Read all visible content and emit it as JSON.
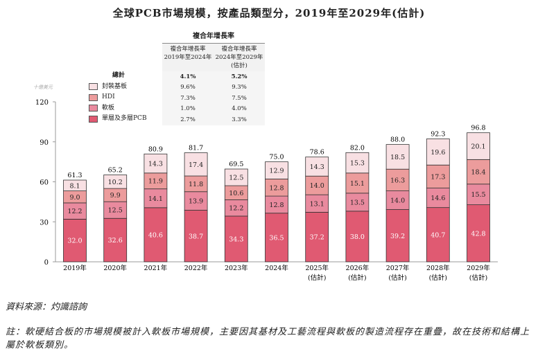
{
  "title": "全球PCB市場規模，按產品類型分，2019年至2029年(估計)",
  "cagr_table": {
    "header": "複合年增長率",
    "columns": [
      "複合年增長率\n2019年至2024年",
      "複合年增長率\n2024年至2029年\n(估計)"
    ],
    "rows": [
      {
        "label": "總計",
        "values": [
          "4.1%",
          "5.2%"
        ]
      },
      {
        "label": "封裝基板",
        "values": [
          "9.6%",
          "9.3%"
        ]
      },
      {
        "label": "HDI",
        "values": [
          "7.3%",
          "7.5%"
        ]
      },
      {
        "label": "軟板",
        "values": [
          "1.0%",
          "4.0%"
        ]
      },
      {
        "label": "單層及多層PCB",
        "values": [
          "2.7%",
          "3.3%"
        ]
      }
    ]
  },
  "chart_data": {
    "type": "bar",
    "stacked": true,
    "title": "全球PCB市場規模，按產品類型分，2019年至2029年(估計)",
    "ylabel": "十億美元",
    "ylim": [
      0,
      120
    ],
    "yticks": [
      0,
      30,
      60,
      90,
      120
    ],
    "grid": false,
    "legend": "top-left",
    "categories": [
      "2019年",
      "2020年",
      "2021年",
      "2022年",
      "2023年",
      "2024年",
      "2025年\n(估計)",
      "2026年\n(估計)",
      "2027年\n(估計)",
      "2028年\n(估計)",
      "2029年\n(估計)"
    ],
    "series": [
      {
        "name": "單層及多層PCB",
        "color": "#e05a72",
        "values": [
          32.0,
          32.6,
          40.6,
          38.7,
          34.3,
          36.5,
          37.2,
          38.0,
          39.2,
          40.7,
          42.8
        ]
      },
      {
        "name": "軟板",
        "color": "#e98a9e",
        "values": [
          12.2,
          12.5,
          14.1,
          13.9,
          12.2,
          12.8,
          13.1,
          13.5,
          14.0,
          14.6,
          15.5
        ]
      },
      {
        "name": "HDI",
        "color": "#ec9c9c",
        "values": [
          9.0,
          9.9,
          11.9,
          11.8,
          10.6,
          12.8,
          14.0,
          15.1,
          16.3,
          17.3,
          18.4
        ]
      },
      {
        "name": "封裝基板",
        "color": "#f8e0e3",
        "values": [
          8.1,
          10.2,
          14.3,
          17.4,
          12.5,
          12.9,
          14.3,
          15.3,
          18.5,
          19.6,
          20.1
        ]
      }
    ],
    "totals": [
      61.3,
      65.2,
      80.9,
      81.7,
      69.5,
      75.0,
      78.6,
      82.0,
      88.0,
      92.3,
      96.8
    ]
  },
  "source": "資料來源：灼識諮詢",
  "note": "註：軟硬結合板的市場規模被計入軟板市場規模，主要因其基材及工藝流程與軟板的製造流程存在重疊，故在技術和結構上屬於軟板類別。"
}
